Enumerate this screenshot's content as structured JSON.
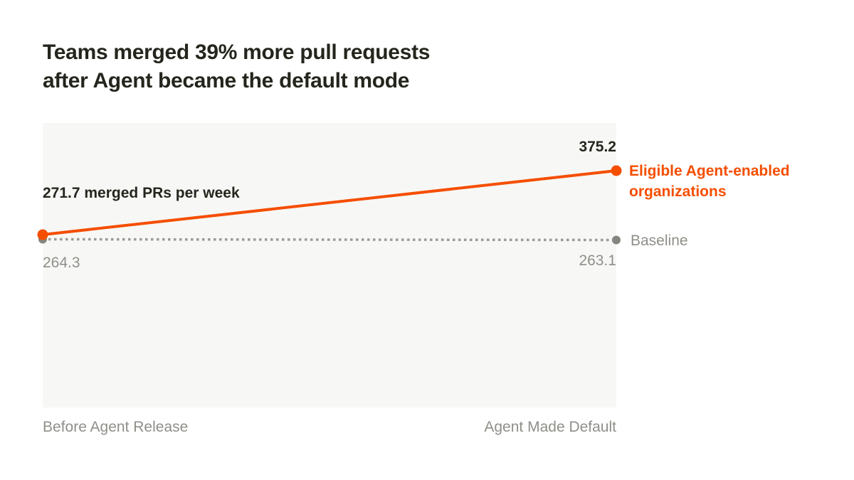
{
  "title": {
    "line1": "Teams merged 39% more pull requests",
    "line2": "after Agent became the default mode"
  },
  "colors": {
    "accent_orange": "#f54e00",
    "gray_text": "#8f8f89",
    "dark_text": "#24261d",
    "plot_background": "#f7f7f6",
    "baseline_line": "#9a9a95",
    "baseline_dot": "#85857f"
  },
  "chart_data": {
    "type": "line",
    "categories": [
      "Before Agent Release",
      "Agent Made Default"
    ],
    "series": [
      {
        "name": "Eligible Agent-enabled organizations",
        "values": [
          271.7,
          375.2
        ],
        "color": "#f54e00",
        "style": "solid"
      },
      {
        "name": "Baseline",
        "values": [
          264.3,
          263.1
        ],
        "color": "#9a9a95",
        "style": "dotted"
      }
    ],
    "annotations": {
      "start_label": "271.7 merged PRs per week",
      "end_value": "375.2",
      "baseline_start_value": "264.3",
      "baseline_end_value": "263.1"
    },
    "title": "Teams merged 39% more pull requests after Agent became the default mode",
    "xlabel": "",
    "ylabel": "merged PRs per week",
    "grid": false,
    "legend_position": "right-of-line-endpoints"
  }
}
